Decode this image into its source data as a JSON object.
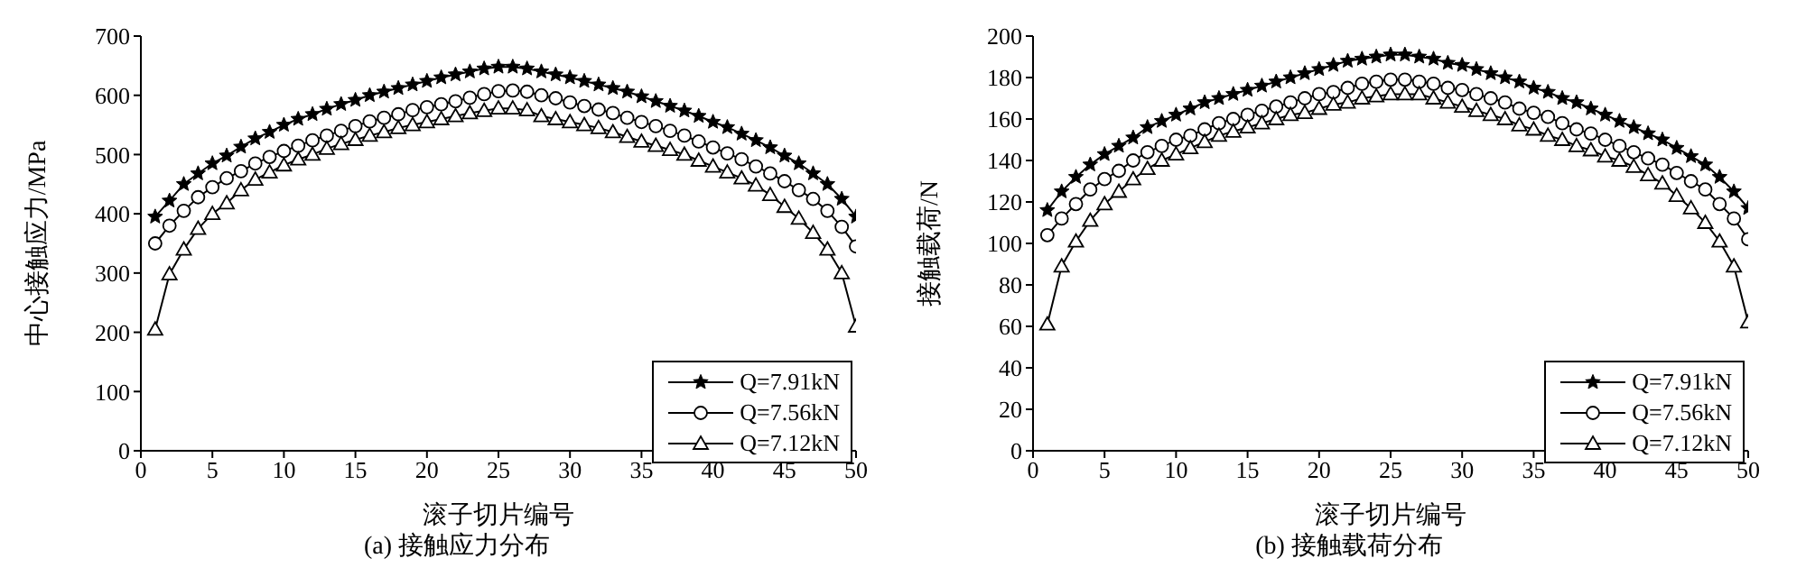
{
  "chart_data": [
    {
      "type": "line",
      "title": "(a) 接触应力分布",
      "xlabel": "滚子切片编号",
      "ylabel": "中心接触应力/MPa",
      "x": [
        1,
        2,
        3,
        4,
        5,
        6,
        7,
        8,
        9,
        10,
        11,
        12,
        13,
        14,
        15,
        16,
        17,
        18,
        19,
        20,
        21,
        22,
        23,
        24,
        25,
        26,
        27,
        28,
        29,
        30,
        31,
        32,
        33,
        34,
        35,
        36,
        37,
        38,
        39,
        40,
        41,
        42,
        43,
        44,
        45,
        46,
        47,
        48,
        49,
        50
      ],
      "series": [
        {
          "name": "Q=7.91kN",
          "color": "#000000",
          "marker": "star",
          "values": [
            395,
            422,
            450,
            468,
            485,
            498,
            513,
            527,
            538,
            550,
            560,
            568,
            577,
            585,
            592,
            600,
            606,
            612,
            618,
            624,
            630,
            635,
            640,
            645,
            648,
            648,
            645,
            640,
            635,
            630,
            624,
            618,
            612,
            606,
            598,
            590,
            582,
            574,
            565,
            555,
            546,
            535,
            524,
            512,
            498,
            485,
            468,
            450,
            425,
            395
          ]
        },
        {
          "name": "Q=7.56kN",
          "color": "#000000",
          "marker": "circle",
          "values": [
            350,
            380,
            405,
            428,
            445,
            460,
            472,
            485,
            496,
            506,
            515,
            524,
            532,
            540,
            548,
            556,
            562,
            568,
            575,
            580,
            585,
            590,
            596,
            602,
            607,
            608,
            606,
            600,
            595,
            588,
            582,
            576,
            570,
            562,
            555,
            548,
            540,
            532,
            522,
            512,
            502,
            492,
            480,
            468,
            455,
            440,
            425,
            405,
            378,
            345
          ]
        },
        {
          "name": "Q=7.12kN",
          "color": "#000000",
          "marker": "triangle",
          "values": [
            205,
            298,
            340,
            375,
            400,
            418,
            440,
            458,
            470,
            482,
            492,
            500,
            510,
            518,
            525,
            532,
            538,
            545,
            550,
            555,
            560,
            565,
            570,
            574,
            578,
            578,
            575,
            565,
            560,
            555,
            550,
            545,
            538,
            530,
            522,
            515,
            508,
            500,
            490,
            480,
            470,
            460,
            448,
            432,
            412,
            392,
            368,
            340,
            300,
            210
          ]
        }
      ],
      "xlim": [
        0,
        50
      ],
      "xticks": [
        0,
        5,
        10,
        15,
        20,
        25,
        30,
        35,
        40,
        45,
        50
      ],
      "ylim": [
        0,
        700
      ],
      "yticks": [
        0,
        100,
        200,
        300,
        400,
        500,
        600,
        700
      ],
      "grid": false,
      "legend": "bottom right",
      "line_style": "solid"
    },
    {
      "type": "line",
      "title": "(b) 接触载荷分布",
      "xlabel": "滚子切片编号",
      "ylabel": "接触载荷/N",
      "x": [
        1,
        2,
        3,
        4,
        5,
        6,
        7,
        8,
        9,
        10,
        11,
        12,
        13,
        14,
        15,
        16,
        17,
        18,
        19,
        20,
        21,
        22,
        23,
        24,
        25,
        26,
        27,
        28,
        29,
        30,
        31,
        32,
        33,
        34,
        35,
        36,
        37,
        38,
        39,
        40,
        41,
        42,
        43,
        44,
        45,
        46,
        47,
        48,
        49,
        50
      ],
      "series": [
        {
          "name": "Q=7.91kN",
          "color": "#000000",
          "marker": "star",
          "values": [
            116,
            125,
            132,
            138,
            143,
            147,
            151,
            156,
            159,
            162,
            165,
            168,
            170,
            172,
            174,
            176,
            178,
            180,
            182,
            184,
            186,
            188,
            189,
            190,
            191,
            191,
            190,
            189,
            187,
            186,
            184,
            182,
            180,
            178,
            175,
            173,
            170,
            168,
            165,
            162,
            159,
            156,
            153,
            150,
            146,
            142,
            138,
            132,
            125,
            117
          ]
        },
        {
          "name": "Q=7.56kN",
          "color": "#000000",
          "marker": "circle",
          "values": [
            104,
            112,
            119,
            126,
            131,
            135,
            140,
            144,
            147,
            150,
            152,
            155,
            158,
            160,
            162,
            164,
            166,
            168,
            170,
            172,
            173,
            175,
            177,
            178,
            179,
            179,
            178,
            177,
            175,
            174,
            172,
            170,
            168,
            165,
            163,
            161,
            158,
            155,
            153,
            150,
            147,
            144,
            141,
            138,
            134,
            130,
            126,
            119,
            112,
            102
          ]
        },
        {
          "name": "Q=7.12kN",
          "color": "#000000",
          "marker": "triangle",
          "values": [
            61,
            89,
            101,
            111,
            119,
            125,
            131,
            136,
            140,
            143,
            146,
            149,
            152,
            154,
            156,
            158,
            160,
            162,
            163,
            165,
            167,
            168,
            170,
            171,
            172,
            172,
            172,
            170,
            168,
            166,
            164,
            162,
            160,
            157,
            155,
            152,
            150,
            147,
            145,
            142,
            140,
            137,
            133,
            129,
            123,
            117,
            110,
            101,
            89,
            62
          ]
        }
      ],
      "xlim": [
        0,
        50
      ],
      "xticks": [
        0,
        5,
        10,
        15,
        20,
        25,
        30,
        35,
        40,
        45,
        50
      ],
      "ylim": [
        0,
        200
      ],
      "yticks": [
        0,
        20,
        40,
        60,
        80,
        100,
        120,
        140,
        160,
        180,
        200
      ],
      "grid": false,
      "legend": "bottom right",
      "line_style": "solid"
    }
  ]
}
